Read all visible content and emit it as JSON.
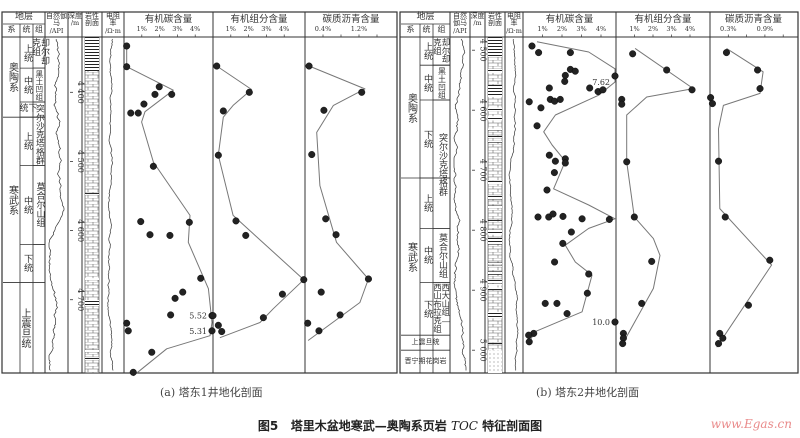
{
  "headers": {
    "strata": "地层",
    "system": "系",
    "series": "统",
    "formation": "组",
    "gamma": "自然伽马",
    "gamma_unit": "/API",
    "depth": "深度",
    "depth_unit": "/m",
    "lithology": "岩性剖面",
    "resistivity": "电阻率",
    "resistivity_unit": "/Ω·m"
  },
  "wells": [
    {
      "caption": "(a) 塔东1井地化剖面",
      "depth_ticks": [
        "4 400",
        "4 500",
        "4 600",
        "4 700"
      ],
      "depth_tick_values": [
        4400,
        4500,
        4600,
        4700
      ],
      "ylim": [
        4320,
        4806
      ],
      "systems": [
        {
          "label": "奥陶系",
          "top": 4320,
          "bottom": 4436
        },
        {
          "label": "寒武系",
          "top": 4436,
          "bottom": 4675
        },
        {
          "label": "上震旦统",
          "top": 4675,
          "bottom": 4806,
          "span": true
        }
      ],
      "series": [
        {
          "label": "上统",
          "top": 4320,
          "bottom": 4365
        },
        {
          "label": "中统",
          "top": 4365,
          "bottom": 4414
        },
        {
          "label": "下统",
          "top": 4414,
          "bottom": 4436
        },
        {
          "label": "上统",
          "top": 4436,
          "bottom": 4506
        },
        {
          "label": "中统",
          "top": 4506,
          "bottom": 4620
        },
        {
          "label": "下统",
          "top": 4620,
          "bottom": 4675
        }
      ],
      "formations": [
        {
          "label": "却尔却克组",
          "top": 4320,
          "bottom": 4365
        },
        {
          "label": "黑土凹组",
          "top": 4365,
          "bottom": 4414
        },
        {
          "label": "突尔沙克塔格群",
          "top": 4414,
          "bottom": 4506
        },
        {
          "label": "莫合尔山组",
          "top": 4506,
          "bottom": 4620
        },
        {
          "label": "",
          "top": 4620,
          "bottom": 4675
        }
      ]
    },
    {
      "caption": "(b) 塔东2井地化剖面",
      "depth_ticks": [
        "4 500",
        "4 600",
        "4 700",
        "4 800",
        "4 900",
        "5 000"
      ],
      "depth_tick_values": [
        4500,
        4600,
        4700,
        4800,
        4900,
        5000
      ],
      "ylim": [
        4478,
        5038
      ],
      "systems": [
        {
          "label": "奥陶系",
          "top": 4478,
          "bottom": 4713
        },
        {
          "label": "寒武系",
          "top": 4713,
          "bottom": 4975
        },
        {
          "label": "上震旦统",
          "top": 4975,
          "bottom": 5000,
          "span": true
        },
        {
          "label": "晋宁期花岗岩",
          "top": 5000,
          "bottom": 5038,
          "span": true
        }
      ],
      "series": [
        {
          "label": "上统",
          "top": 4478,
          "bottom": 4525
        },
        {
          "label": "中统",
          "top": 4525,
          "bottom": 4583
        },
        {
          "label": "下统",
          "top": 4583,
          "bottom": 4713
        },
        {
          "label": "上统",
          "top": 4713,
          "bottom": 4797
        },
        {
          "label": "中统",
          "top": 4797,
          "bottom": 4887
        },
        {
          "label": "下统",
          "top": 4887,
          "bottom": 4975
        }
      ],
      "formations": [
        {
          "label": "却尔却克组",
          "top": 4478,
          "bottom": 4525
        },
        {
          "label": "黑土凹组",
          "top": 4525,
          "bottom": 4583
        },
        {
          "label": "突尔沙克塔格群",
          "top": 4583,
          "bottom": 4797
        },
        {
          "label": "莫合尔山组",
          "top": 4797,
          "bottom": 4887
        },
        {
          "label": "西大山组—西山布拉克组",
          "top": 4887,
          "bottom": 4975
        }
      ]
    }
  ],
  "chart_data": [
    {
      "well": 0,
      "type": "scatter",
      "title": "有机碳含量",
      "tick_values": [
        1,
        2,
        3,
        4
      ],
      "tick_labels": [
        "1%",
        "2%",
        "3%",
        "4%"
      ],
      "x_ticks": [
        1,
        2,
        3,
        4
      ],
      "ylim": [
        4320,
        4806
      ],
      "points": [
        [
          0.15,
          4333
        ],
        [
          0.15,
          4363
        ],
        [
          1.98,
          4392
        ],
        [
          1.74,
          4403
        ],
        [
          2.68,
          4403
        ],
        [
          1.12,
          4417
        ],
        [
          0.38,
          4430
        ],
        [
          0.8,
          4430
        ],
        [
          1.65,
          4507
        ],
        [
          0.94,
          4587
        ],
        [
          3.67,
          4588
        ],
        [
          1.46,
          4606
        ],
        [
          2.58,
          4607
        ],
        [
          4.31,
          4669
        ],
        [
          3.3,
          4689
        ],
        [
          2.87,
          4698
        ],
        [
          2.62,
          4722
        ],
        [
          5.52,
          4723
        ],
        [
          0.15,
          4734
        ],
        [
          0.24,
          4745
        ],
        [
          5.31,
          4745
        ],
        [
          1.56,
          4776
        ],
        [
          0.52,
          4805
        ]
      ],
      "trend": [
        [
          0.15,
          4332
        ],
        [
          0.15,
          4363
        ],
        [
          2.77,
          4397
        ],
        [
          1.18,
          4428
        ],
        [
          0.99,
          4443
        ],
        [
          1.65,
          4501
        ],
        [
          3.71,
          4578
        ],
        [
          3.61,
          4617
        ],
        [
          4.74,
          4684
        ],
        [
          5.0,
          4733
        ],
        [
          4.83,
          4752
        ],
        [
          2.4,
          4771
        ],
        [
          0.52,
          4810
        ]
      ],
      "annotations": [
        {
          "text": "5.52",
          "x": 5.52,
          "y": 4723
        },
        {
          "text": "5.31",
          "x": 5.31,
          "y": 4745
        }
      ]
    },
    {
      "well": 0,
      "type": "scatter",
      "title": "有机组分含量",
      "tick_values": [
        1,
        2,
        3,
        4
      ],
      "tick_labels": [
        "1%",
        "2%",
        "3%",
        "4%"
      ],
      "x_ticks": [
        1,
        2,
        3,
        4
      ],
      "ylim": [
        4320,
        4806
      ],
      "points": [
        [
          0.21,
          4362
        ],
        [
          2.04,
          4400
        ],
        [
          0.58,
          4427
        ],
        [
          0.3,
          4491
        ],
        [
          1.29,
          4586
        ],
        [
          1.84,
          4607
        ],
        [
          5.1,
          4671
        ],
        [
          3.9,
          4692
        ],
        [
          2.83,
          4726
        ],
        [
          0,
          4723
        ],
        [
          0.3,
          4737
        ],
        [
          0.49,
          4746
        ]
      ],
      "trend": [
        [
          0.21,
          4362
        ],
        [
          2.17,
          4396
        ],
        [
          1.13,
          4419
        ],
        [
          0.58,
          4436
        ],
        [
          0.3,
          4491
        ],
        [
          1.13,
          4578
        ],
        [
          5.1,
          4671
        ],
        [
          3.39,
          4713
        ],
        [
          2.64,
          4733
        ],
        [
          0.39,
          4755
        ]
      ],
      "annotations": []
    },
    {
      "well": 0,
      "type": "scatter",
      "title": "碳质沥青含量",
      "tick_values": [
        0.4,
        1.2
      ],
      "tick_labels": [
        "0.4%",
        "1.2%"
      ],
      "x_ticks": [
        0.4,
        0.8,
        1.2,
        1.6
      ],
      "ylim": [
        4320,
        4806
      ],
      "points": [
        [
          0.09,
          4362
        ],
        [
          1.26,
          4400
        ],
        [
          0.42,
          4426
        ],
        [
          0.15,
          4490
        ],
        [
          0.46,
          4583
        ],
        [
          0.69,
          4606
        ],
        [
          1.41,
          4670
        ],
        [
          0.36,
          4689
        ],
        [
          0.78,
          4722
        ],
        [
          0.06,
          4734
        ],
        [
          0.31,
          4745
        ]
      ],
      "trend": [
        [
          0.09,
          4362
        ],
        [
          1.33,
          4395
        ],
        [
          0.63,
          4419
        ],
        [
          0.26,
          4458
        ],
        [
          0.33,
          4535
        ],
        [
          0.7,
          4617
        ],
        [
          1.41,
          4670
        ],
        [
          1.22,
          4704
        ],
        [
          0.07,
          4759
        ]
      ],
      "annotations": []
    },
    {
      "well": 1,
      "type": "scatter",
      "title": "有机碳含量",
      "tick_values": [
        1,
        2,
        3,
        4
      ],
      "tick_labels": [
        "1%",
        "2%",
        "3%",
        "4%"
      ],
      "x_ticks": [
        1,
        2,
        3,
        4
      ],
      "ylim": [
        4478,
        5038
      ],
      "points": [
        [
          0.46,
          4493
        ],
        [
          0.8,
          4504
        ],
        [
          2.43,
          4504
        ],
        [
          2.43,
          4532
        ],
        [
          2.68,
          4535
        ],
        [
          2.17,
          4542
        ],
        [
          2.14,
          4552
        ],
        [
          1.35,
          4563
        ],
        [
          3.42,
          4563
        ],
        [
          3.85,
          4569
        ],
        [
          4.1,
          4566
        ],
        [
          7.62,
          4543
        ],
        [
          1.4,
          4582
        ],
        [
          1.62,
          4585
        ],
        [
          1.91,
          4582
        ],
        [
          0.32,
          4586
        ],
        [
          0.92,
          4596
        ],
        [
          0.72,
          4626
        ],
        [
          1.35,
          4675
        ],
        [
          1.66,
          4685
        ],
        [
          2.17,
          4681
        ],
        [
          2.17,
          4688
        ],
        [
          1.61,
          4704
        ],
        [
          1.23,
          4733
        ],
        [
          0.77,
          4778
        ],
        [
          1.32,
          4778
        ],
        [
          1.54,
          4773
        ],
        [
          2.05,
          4777
        ],
        [
          3.03,
          4781
        ],
        [
          4.43,
          4782
        ],
        [
          2.48,
          4803
        ],
        [
          2.04,
          4822
        ],
        [
          1.62,
          4853
        ],
        [
          3.37,
          4873
        ],
        [
          3.3,
          4905
        ],
        [
          1.14,
          4922
        ],
        [
          1.74,
          4922
        ],
        [
          2.26,
          4939
        ],
        [
          0.55,
          4972
        ],
        [
          0.29,
          4975
        ],
        [
          0.32,
          4986
        ],
        [
          10.0,
          4953
        ]
      ],
      "trend": [
        [
          0.72,
          4486
        ],
        [
          3.37,
          4503
        ],
        [
          4.73,
          4531
        ],
        [
          4.9,
          4553
        ],
        [
          3.88,
          4575
        ],
        [
          1.66,
          4608
        ],
        [
          1.06,
          4636
        ],
        [
          1.49,
          4658
        ],
        [
          2.17,
          4685
        ],
        [
          1.57,
          4731
        ],
        [
          3.37,
          4758
        ],
        [
          4.73,
          4781
        ],
        [
          3.37,
          4797
        ],
        [
          2.17,
          4825
        ],
        [
          2.68,
          4853
        ],
        [
          3.54,
          4875
        ],
        [
          3.03,
          4936
        ],
        [
          0.63,
          4969
        ],
        [
          0.32,
          4986
        ]
      ],
      "annotations": [
        {
          "text": "7.62",
          "x": 7.62,
          "y": 4553
        },
        {
          "text": "10.0",
          "x": 10.0,
          "y": 4953
        }
      ]
    },
    {
      "well": 1,
      "type": "scatter",
      "title": "有机组分含量",
      "tick_values": [
        1,
        2,
        3,
        4
      ],
      "tick_labels": [
        "1%",
        "2%",
        "3%",
        "4%"
      ],
      "x_ticks": [
        1,
        2,
        3,
        4
      ],
      "ylim": [
        4478,
        5038
      ],
      "points": [
        [
          0.9,
          4506
        ],
        [
          2.74,
          4533
        ],
        [
          4.11,
          4566
        ],
        [
          0.31,
          4582
        ],
        [
          0.31,
          4590
        ],
        [
          0.58,
          4686
        ],
        [
          0.99,
          4778
        ],
        [
          1.93,
          4852
        ],
        [
          1.39,
          4922
        ],
        [
          0.4,
          4972
        ],
        [
          0.4,
          4980
        ],
        [
          0.36,
          4989
        ]
      ],
      "trend": [
        [
          1.03,
          4497
        ],
        [
          4.18,
          4564
        ],
        [
          1.66,
          4578
        ],
        [
          0.58,
          4608
        ],
        [
          0.58,
          4686
        ],
        [
          0.99,
          4778
        ],
        [
          2.02,
          4814
        ],
        [
          2.38,
          4842
        ],
        [
          2.02,
          4897
        ],
        [
          0.36,
          4989
        ]
      ],
      "annotations": []
    },
    {
      "well": 1,
      "type": "scatter",
      "title": "碳质沥青含量",
      "tick_values": [
        0.3,
        0.9
      ],
      "tick_labels": [
        "0.3%",
        "0.9%"
      ],
      "x_ticks": [
        0.3,
        0.6,
        0.9,
        1.2
      ],
      "ylim": [
        4478,
        5038
      ],
      "points": [
        [
          0.27,
          4504
        ],
        [
          0.78,
          4533
        ],
        [
          0.82,
          4564
        ],
        [
          0.01,
          4579
        ],
        [
          0.04,
          4589
        ],
        [
          0.14,
          4685
        ],
        [
          0.25,
          4778
        ],
        [
          0.98,
          4850
        ],
        [
          0.63,
          4925
        ],
        [
          0.16,
          4972
        ],
        [
          0.21,
          4980
        ],
        [
          0.14,
          4989
        ]
      ],
      "trend": [
        [
          0.27,
          4497
        ],
        [
          0.87,
          4536
        ],
        [
          0.82,
          4572
        ],
        [
          0.22,
          4592
        ],
        [
          0.14,
          4631
        ],
        [
          0.16,
          4764
        ],
        [
          0.71,
          4825
        ],
        [
          1.01,
          4858
        ],
        [
          0.11,
          4995
        ]
      ],
      "annotations": []
    }
  ],
  "figure": {
    "number": "图5",
    "title_pre": "塔里木盆地寒武—奥陶系页岩",
    "title_em": "TOC",
    "title_post": "特征剖面图"
  },
  "watermark": "www.Egas.cn",
  "colors": {
    "ink": "#222222",
    "trend": "#777777",
    "frame": "#333333",
    "watermark": "#e98a8a"
  }
}
